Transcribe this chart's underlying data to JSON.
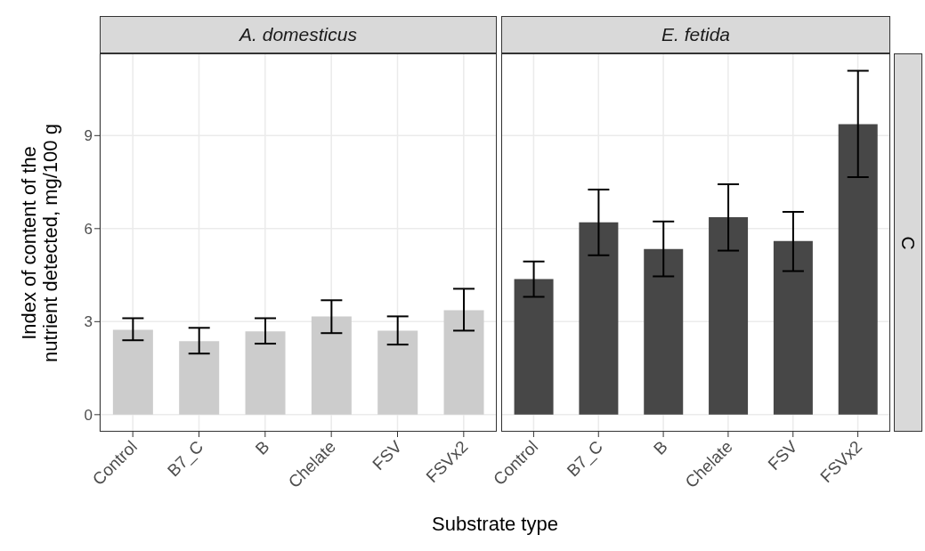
{
  "chart_data": [
    {
      "type": "bar",
      "title": "A. domesticus",
      "ylabel": "Index of content of the nutrient detected, mg/100 g",
      "xlabel": "Substrate type",
      "categories": [
        "Control",
        "B7_C",
        "B",
        "Chelate",
        "FSV",
        "FSVx2"
      ],
      "values": [
        2.74,
        2.37,
        2.69,
        3.17,
        2.71,
        3.37
      ],
      "color": "#cccccc",
      "errors": [
        [
          2.4,
          3.11
        ],
        [
          1.97,
          2.8
        ],
        [
          2.29,
          3.11
        ],
        [
          2.63,
          3.69
        ],
        [
          2.26,
          3.17
        ],
        [
          2.71,
          4.06
        ]
      ],
      "ylim": [
        -0.55,
        11.65
      ],
      "yticks": [
        0,
        3,
        6,
        9
      ],
      "grid": true
    },
    {
      "type": "bar",
      "title": "E. fetida",
      "annotations": [
        "C"
      ],
      "categories": [
        "Control",
        "B7_C",
        "B",
        "Chelate",
        "FSV",
        "FSVx2"
      ],
      "values": [
        4.37,
        6.2,
        5.34,
        6.37,
        5.6,
        9.37
      ],
      "color": "#474747",
      "errors": [
        [
          3.8,
          4.94
        ],
        [
          5.14,
          7.26
        ],
        [
          4.46,
          6.23
        ],
        [
          5.29,
          7.43
        ],
        [
          4.63,
          6.54
        ],
        [
          7.66,
          11.09
        ]
      ],
      "ylim": [
        -0.55,
        11.65
      ],
      "yticks": [
        0,
        3,
        6,
        9
      ],
      "grid": true,
      "tick_labels": "x"
    }
  ]
}
